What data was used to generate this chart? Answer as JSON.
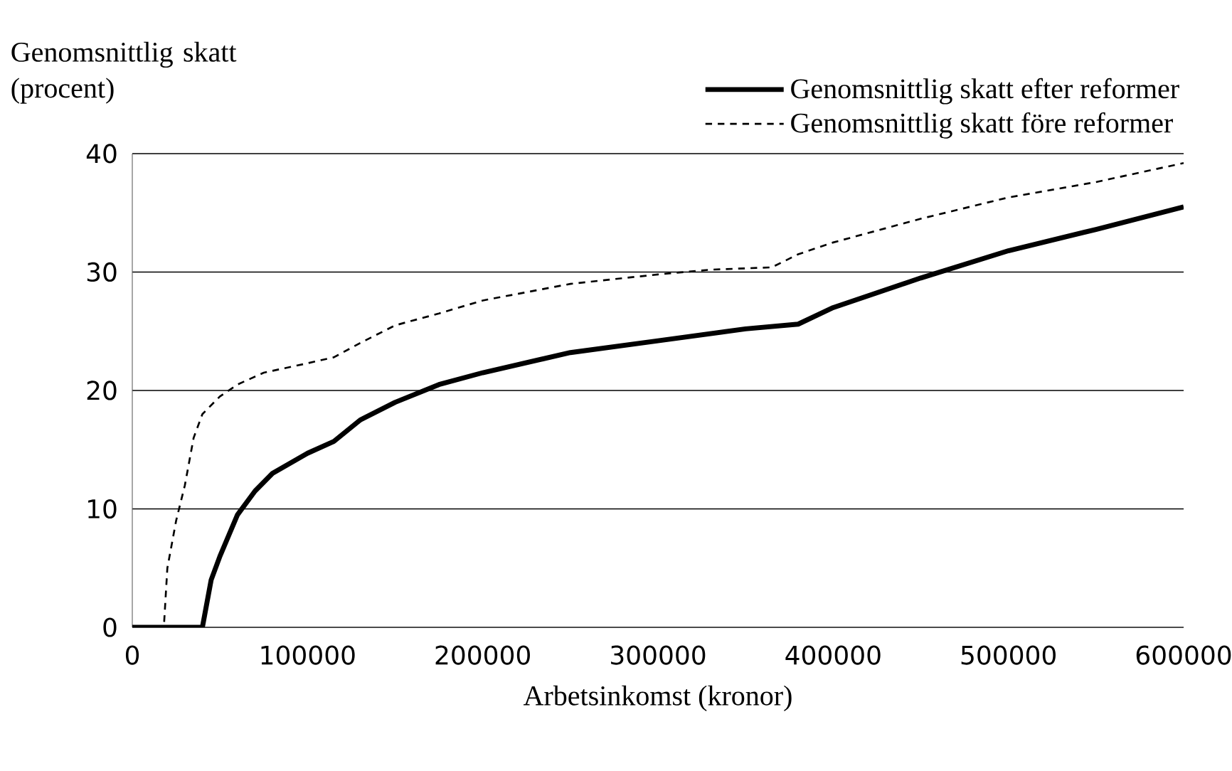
{
  "chart_data": {
    "type": "line",
    "xlabel": "Arbetsinkomst (kronor)",
    "ylabel": "Genomsnittlig skatt (procent)",
    "xlim": [
      0,
      600000
    ],
    "xticks": [
      0,
      100000,
      200000,
      300000,
      400000,
      500000,
      600000
    ],
    "ylim": [
      0,
      40
    ],
    "yticks": [
      0,
      10,
      20,
      30,
      40
    ],
    "grid": "y",
    "legend": "top right",
    "marker": "none",
    "series": [
      {
        "name": "Genomsnittlig skatt efter reformer",
        "color": "#000000",
        "line_style": "solid",
        "x": [
          0,
          40000,
          45000,
          50000,
          60000,
          70000,
          80000,
          100000,
          115000,
          130000,
          150000,
          175000,
          200000,
          250000,
          300000,
          350000,
          380000,
          400000,
          450000,
          500000,
          550000,
          600000
        ],
        "values": [
          0,
          0,
          4,
          6,
          9.5,
          11.5,
          13,
          14.7,
          15.7,
          17.5,
          19,
          20.5,
          21.5,
          23.2,
          24.2,
          25.2,
          25.6,
          27,
          29.5,
          31.8,
          33.6,
          35.5
        ]
      },
      {
        "name": "Genomsnittlig skatt före reformer",
        "color": "#000000",
        "line_style": "dashed",
        "x": [
          0,
          18000,
          20000,
          25000,
          30000,
          35000,
          40000,
          50000,
          60000,
          75000,
          100000,
          115000,
          130000,
          150000,
          175000,
          200000,
          250000,
          300000,
          330000,
          365000,
          380000,
          400000,
          450000,
          500000,
          550000,
          600000
        ],
        "values": [
          0,
          0,
          5,
          9,
          12,
          16,
          18,
          19.5,
          20.5,
          21.5,
          22.3,
          22.8,
          24,
          25.5,
          26.5,
          27.6,
          29,
          29.8,
          30.2,
          30.4,
          31.5,
          32.5,
          34.5,
          36.3,
          37.6,
          39.2
        ]
      }
    ]
  }
}
